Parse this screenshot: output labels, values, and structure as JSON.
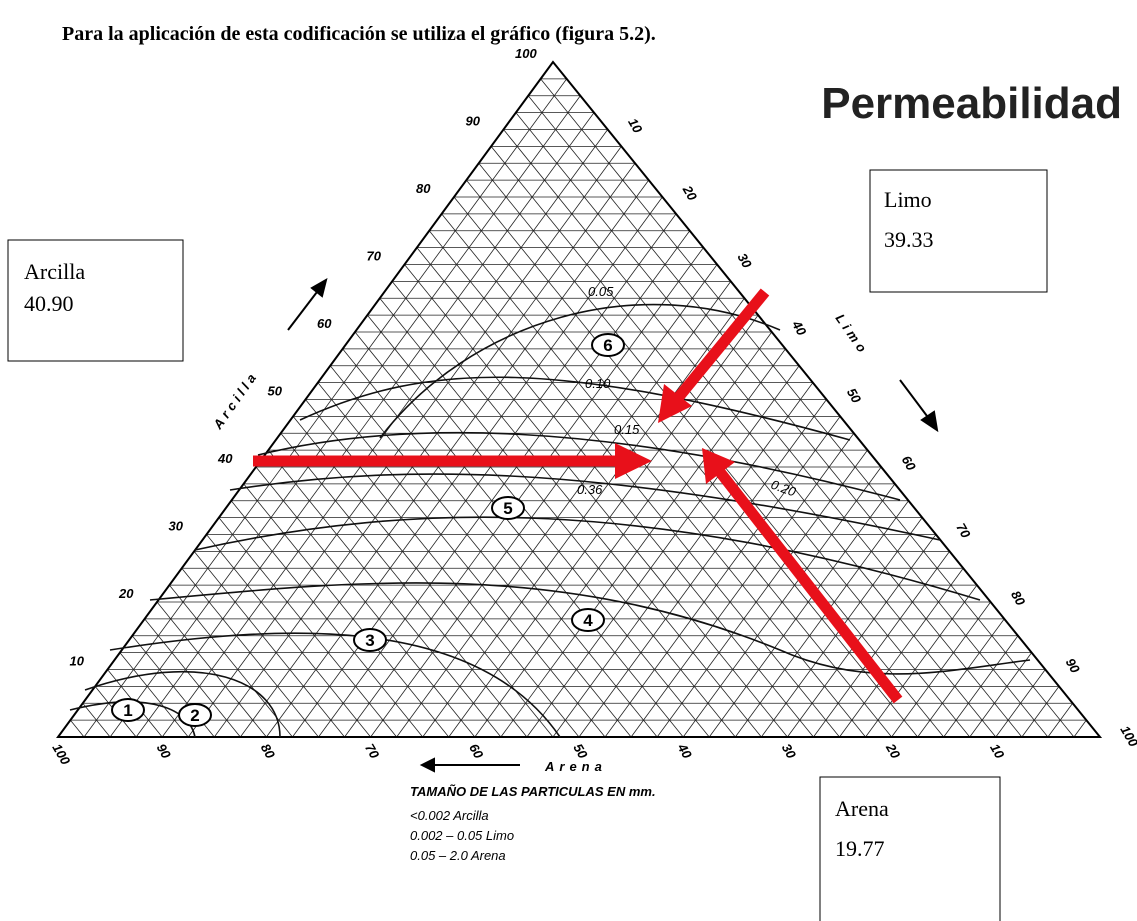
{
  "header": {
    "text": "Para la aplicación de esta codificación se utiliza el gráfico (figura 5.2)."
  },
  "title": "Permeabilidad",
  "boxes": [
    {
      "label": "Arcilla",
      "value": "40.90"
    },
    {
      "label": "Limo",
      "value": "39.33"
    },
    {
      "label": "Arena",
      "value": "19.77"
    }
  ],
  "axes": {
    "clay": {
      "label": "Arcilla",
      "ticks": [
        10,
        20,
        30,
        40,
        50,
        60,
        70,
        80,
        90,
        100
      ]
    },
    "silt": {
      "label": "Limo",
      "ticks": [
        10,
        20,
        30,
        40,
        50,
        60,
        70,
        80,
        90,
        100
      ]
    },
    "sand": {
      "label": "Arena",
      "ticks": [
        100,
        90,
        80,
        70,
        60,
        50,
        40,
        30,
        20,
        10
      ]
    }
  },
  "zones": [
    "1",
    "2",
    "3",
    "4",
    "5",
    "6"
  ],
  "curves": [
    "0.05",
    "0.10",
    "0.15",
    "0.36",
    "0.20"
  ],
  "legend": {
    "title": "TAMAÑO DE LAS PARTICULAS EN mm.",
    "items": [
      "<0.002 Arcilla",
      "0.002 – 0.05 Limo",
      "0.05 – 2.0 Arena"
    ]
  }
}
